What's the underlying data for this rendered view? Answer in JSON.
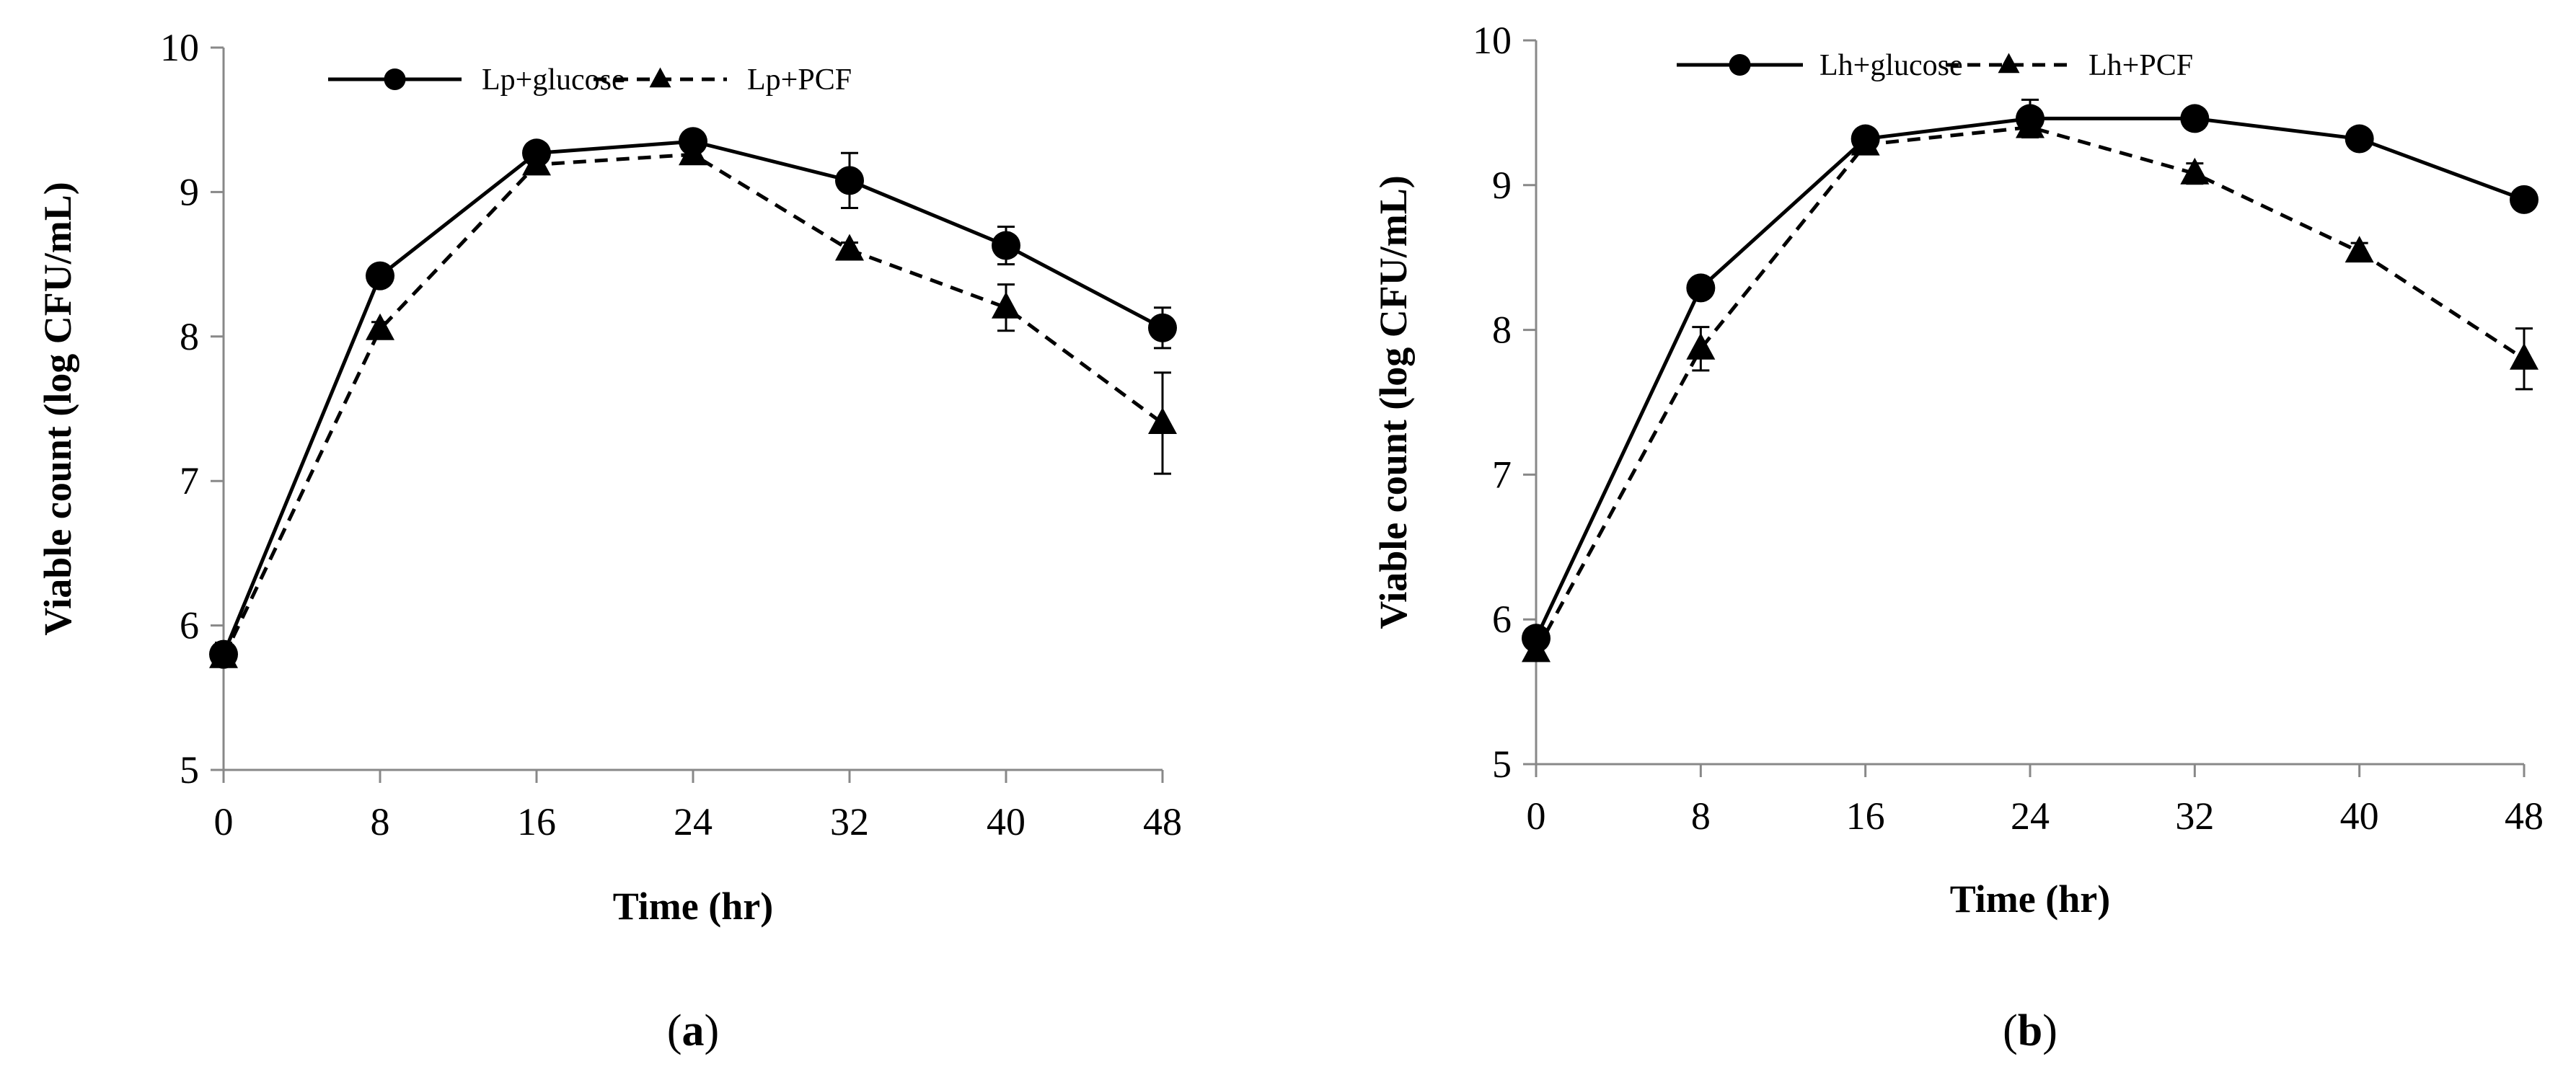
{
  "chart_data": [
    {
      "type": "line",
      "panel_label": "a",
      "title": "",
      "xlabel": "Time (hr)",
      "ylabel": "Viable count (log CFU/mL)",
      "x": [
        0,
        8,
        16,
        24,
        32,
        40,
        48
      ],
      "xticks": [
        "0",
        "8",
        "16",
        "24",
        "32",
        "40",
        "48"
      ],
      "xlim": [
        0,
        48
      ],
      "ylim": [
        5,
        10
      ],
      "yticks": [
        "5",
        "6",
        "7",
        "8",
        "9",
        "10"
      ],
      "grid": false,
      "legend_position": "top",
      "series": [
        {
          "name": "Lp+glucose",
          "style": "solid",
          "marker": "circle",
          "values": [
            5.8,
            8.42,
            9.27,
            9.35,
            9.08,
            8.63,
            8.06
          ],
          "errors": [
            0.08,
            0.04,
            0.04,
            0.04,
            0.19,
            0.13,
            0.14
          ]
        },
        {
          "name": "Lp+PCF",
          "style": "dashed",
          "marker": "triangle",
          "values": [
            5.78,
            8.05,
            9.19,
            9.26,
            8.6,
            8.2,
            7.4
          ],
          "errors": [
            0.06,
            0.05,
            0.04,
            0.04,
            0.05,
            0.16,
            0.35
          ]
        }
      ]
    },
    {
      "type": "line",
      "panel_label": "b",
      "title": "",
      "xlabel": "Time (hr)",
      "ylabel": "Viable count (log CFU/mL)",
      "x": [
        0,
        8,
        16,
        24,
        32,
        40,
        48
      ],
      "xticks": [
        "0",
        "8",
        "16",
        "24",
        "32",
        "40",
        "48"
      ],
      "xlim": [
        0,
        48
      ],
      "ylim": [
        5,
        10
      ],
      "yticks": [
        "5",
        "6",
        "7",
        "8",
        "9",
        "10"
      ],
      "grid": false,
      "legend_position": "top",
      "series": [
        {
          "name": "Lh+glucose",
          "style": "solid",
          "marker": "circle",
          "values": [
            5.87,
            8.29,
            9.32,
            9.46,
            9.46,
            9.32,
            8.9
          ],
          "errors": [
            0.04,
            0.04,
            0.04,
            0.13,
            0.04,
            0.04,
            0.04
          ]
        },
        {
          "name": "Lh+PCF",
          "style": "dashed",
          "marker": "triangle",
          "values": [
            5.78,
            7.87,
            9.28,
            9.4,
            9.08,
            8.54,
            7.8
          ],
          "errors": [
            0.04,
            0.15,
            0.04,
            0.06,
            0.07,
            0.06,
            0.21
          ]
        }
      ]
    }
  ]
}
